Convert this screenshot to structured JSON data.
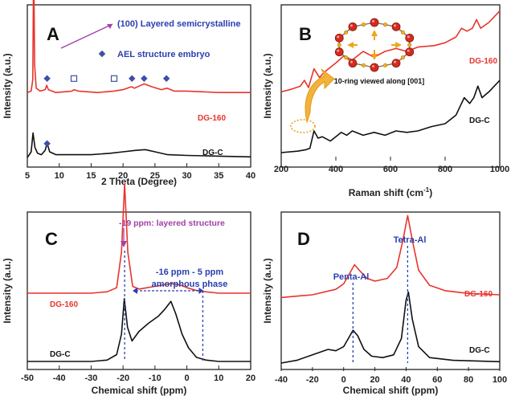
{
  "colors": {
    "red": "#e8342c",
    "black": "#111111",
    "blue": "#2a3fb0",
    "purple": "#a040a8",
    "diamond": "#3d4fa8",
    "ringbead": "#d42b1e",
    "arrow": "#f0a51a"
  },
  "chart_data": [
    {
      "panel": "A",
      "type": "line",
      "xlabel": "2 Theta (Degree)",
      "ylabel": "Intensity (a.u.)",
      "xlim": [
        5,
        40
      ],
      "xticks": [
        "5",
        "10",
        "15",
        "20",
        "25",
        "30",
        "35",
        "40"
      ],
      "legend": {
        "marker1": "(100) Layered semicrystalline",
        "marker2": "AEL structure embryo"
      },
      "series": [
        {
          "name": "DG-160",
          "color": "#e8342c",
          "offset": 0.45,
          "points": [
            [
              5,
              0.01
            ],
            [
              5.6,
              0.02
            ],
            [
              5.85,
              0.1
            ],
            [
              6.0,
              0.95
            ],
            [
              6.15,
              0.2
            ],
            [
              6.4,
              0.04
            ],
            [
              7.0,
              0.02
            ],
            [
              7.8,
              0.03
            ],
            [
              8.05,
              0.06
            ],
            [
              8.3,
              0.03
            ],
            [
              9.5,
              0.01
            ],
            [
              12.0,
              0.02
            ],
            [
              12.3,
              0.03
            ],
            [
              13,
              0.02
            ],
            [
              16,
              0.01
            ],
            [
              18.6,
              0.02
            ],
            [
              20,
              0.03
            ],
            [
              21.3,
              0.05
            ],
            [
              21.8,
              0.04
            ],
            [
              22.8,
              0.06
            ],
            [
              23.3,
              0.07
            ],
            [
              24.5,
              0.05
            ],
            [
              26,
              0.03
            ],
            [
              26.9,
              0.04
            ],
            [
              28,
              0.02
            ],
            [
              30,
              0.02
            ],
            [
              35,
              0.01
            ],
            [
              40,
              0.01
            ]
          ]
        },
        {
          "name": "DG-C",
          "color": "#111111",
          "offset": 0.0,
          "points": [
            [
              5,
              0.01
            ],
            [
              5.6,
              0.05
            ],
            [
              5.9,
              0.18
            ],
            [
              6.2,
              0.08
            ],
            [
              6.6,
              0.04
            ],
            [
              7.2,
              0.03
            ],
            [
              7.8,
              0.06
            ],
            [
              8.1,
              0.11
            ],
            [
              8.5,
              0.05
            ],
            [
              9.5,
              0.03
            ],
            [
              12,
              0.03
            ],
            [
              15,
              0.03
            ],
            [
              18,
              0.04
            ],
            [
              20,
              0.05
            ],
            [
              22,
              0.06
            ],
            [
              23.5,
              0.065
            ],
            [
              25,
              0.05
            ],
            [
              27,
              0.03
            ],
            [
              30,
              0.025
            ],
            [
              35,
              0.02
            ],
            [
              40,
              0.015
            ]
          ]
        }
      ],
      "markers": [
        {
          "type": "filled-diamond",
          "x": [
            8.1,
            21.4,
            23.3,
            26.8
          ],
          "series": "DG-160"
        },
        {
          "type": "open-square",
          "x": [
            12.3,
            18.6
          ],
          "series": "DG-160"
        },
        {
          "type": "filled-diamond",
          "x": [
            8.1
          ],
          "series": "DG-C"
        }
      ]
    },
    {
      "panel": "B",
      "type": "line",
      "xlabel": "Raman shift (cm",
      "xlabel_sup": "-1",
      "xlabel_end": ")",
      "ylabel": "Intensity (a.u.)",
      "xlim": [
        200,
        1000
      ],
      "xticks": [
        "200",
        "400",
        "600",
        "800",
        "1000"
      ],
      "inset_label": "10-ring viewed along [001]",
      "series": [
        {
          "name": "DG-160",
          "color": "#e8342c",
          "offset": 0.42,
          "points": [
            [
              200,
              0.0
            ],
            [
              240,
              0.02
            ],
            [
              270,
              0.04
            ],
            [
              285,
              0.08
            ],
            [
              300,
              0.03
            ],
            [
              320,
              0.16
            ],
            [
              340,
              0.1
            ],
            [
              360,
              0.14
            ],
            [
              400,
              0.2
            ],
            [
              430,
              0.25
            ],
            [
              460,
              0.22
            ],
            [
              500,
              0.28
            ],
            [
              540,
              0.24
            ],
            [
              580,
              0.28
            ],
            [
              620,
              0.3
            ],
            [
              660,
              0.28
            ],
            [
              700,
              0.31
            ],
            [
              760,
              0.32
            ],
            [
              800,
              0.34
            ],
            [
              840,
              0.38
            ],
            [
              860,
              0.44
            ],
            [
              880,
              0.42
            ],
            [
              900,
              0.44
            ],
            [
              915,
              0.5
            ],
            [
              930,
              0.44
            ],
            [
              960,
              0.48
            ],
            [
              1000,
              0.56
            ]
          ]
        },
        {
          "name": "DG-C",
          "color": "#111111",
          "offset": 0.0,
          "points": [
            [
              200,
              0.0
            ],
            [
              260,
              0.01
            ],
            [
              290,
              0.02
            ],
            [
              305,
              0.03
            ],
            [
              320,
              0.15
            ],
            [
              335,
              0.1
            ],
            [
              350,
              0.11
            ],
            [
              380,
              0.08
            ],
            [
              420,
              0.14
            ],
            [
              440,
              0.12
            ],
            [
              460,
              0.15
            ],
            [
              500,
              0.12
            ],
            [
              540,
              0.14
            ],
            [
              580,
              0.12
            ],
            [
              620,
              0.15
            ],
            [
              660,
              0.14
            ],
            [
              700,
              0.15
            ],
            [
              750,
              0.18
            ],
            [
              800,
              0.2
            ],
            [
              840,
              0.26
            ],
            [
              870,
              0.38
            ],
            [
              890,
              0.34
            ],
            [
              905,
              0.38
            ],
            [
              920,
              0.46
            ],
            [
              935,
              0.38
            ],
            [
              960,
              0.42
            ],
            [
              1000,
              0.5
            ]
          ]
        }
      ]
    },
    {
      "panel": "C",
      "type": "line",
      "xlabel": "Chemical shift (ppm)",
      "ylabel": "Intensity (a.u.)",
      "xlim": [
        -50,
        20
      ],
      "xticks": [
        "-50",
        "-40",
        "-30",
        "-20",
        "-10",
        "0",
        "10",
        "20"
      ],
      "annotations": {
        "peak": "-19 ppm:  layered structure",
        "range1": "-16 ppm - 5 ppm",
        "range2": "amorphous phase"
      },
      "series": [
        {
          "name": "DG-160",
          "color": "#e8342c",
          "offset": 0.5,
          "points": [
            [
              -50,
              0.0
            ],
            [
              -30,
              0.0
            ],
            [
              -25,
              0.01
            ],
            [
              -22,
              0.04
            ],
            [
              -20.5,
              0.3
            ],
            [
              -19.5,
              0.8
            ],
            [
              -18.5,
              0.3
            ],
            [
              -17,
              0.05
            ],
            [
              -15,
              0.03
            ],
            [
              -10,
              0.05
            ],
            [
              -5,
              0.07
            ],
            [
              -2,
              0.06
            ],
            [
              0,
              0.04
            ],
            [
              3,
              0.02
            ],
            [
              6,
              0.01
            ],
            [
              10,
              0.0
            ],
            [
              20,
              0.0
            ]
          ]
        },
        {
          "name": "DG-C",
          "color": "#111111",
          "offset": 0.0,
          "points": [
            [
              -50,
              0.0
            ],
            [
              -30,
              0.0
            ],
            [
              -25,
              0.01
            ],
            [
              -22,
              0.05
            ],
            [
              -20.5,
              0.2
            ],
            [
              -19.6,
              0.46
            ],
            [
              -18.6,
              0.25
            ],
            [
              -17.2,
              0.15
            ],
            [
              -15,
              0.22
            ],
            [
              -12,
              0.28
            ],
            [
              -9,
              0.33
            ],
            [
              -7,
              0.38
            ],
            [
              -5,
              0.44
            ],
            [
              -3.5,
              0.35
            ],
            [
              -1.5,
              0.2
            ],
            [
              0.5,
              0.1
            ],
            [
              3,
              0.03
            ],
            [
              6,
              0.01
            ],
            [
              10,
              0.0
            ],
            [
              20,
              0.0
            ]
          ]
        }
      ]
    },
    {
      "panel": "D",
      "type": "line",
      "xlabel": "Chemical shift (ppm)",
      "ylabel": "Intensity (a.u.)",
      "xlim": [
        -40,
        100
      ],
      "xticks": [
        "-40",
        "-20",
        "0",
        "20",
        "40",
        "60",
        "80",
        "100"
      ],
      "annotations": {
        "penta": "Penta-Al",
        "tetra": "Tetra-Al"
      },
      "series": [
        {
          "name": "DG-160",
          "color": "#e8342c",
          "offset": 0.48,
          "points": [
            [
              -40,
              0.0
            ],
            [
              -20,
              0.02
            ],
            [
              -5,
              0.06
            ],
            [
              0,
              0.1
            ],
            [
              5,
              0.2
            ],
            [
              7,
              0.24
            ],
            [
              10,
              0.2
            ],
            [
              15,
              0.14
            ],
            [
              20,
              0.12
            ],
            [
              28,
              0.14
            ],
            [
              34,
              0.22
            ],
            [
              38,
              0.42
            ],
            [
              41,
              0.6
            ],
            [
              44,
              0.42
            ],
            [
              48,
              0.2
            ],
            [
              55,
              0.09
            ],
            [
              65,
              0.05
            ],
            [
              80,
              0.03
            ],
            [
              100,
              0.02
            ]
          ]
        },
        {
          "name": "DG-C",
          "color": "#111111",
          "offset": 0.0,
          "points": [
            [
              -40,
              0.0
            ],
            [
              -30,
              0.02
            ],
            [
              -20,
              0.06
            ],
            [
              -10,
              0.1
            ],
            [
              -5,
              0.09
            ],
            [
              0,
              0.12
            ],
            [
              4,
              0.2
            ],
            [
              6,
              0.24
            ],
            [
              9,
              0.2
            ],
            [
              13,
              0.1
            ],
            [
              18,
              0.05
            ],
            [
              25,
              0.04
            ],
            [
              32,
              0.06
            ],
            [
              37,
              0.18
            ],
            [
              40,
              0.46
            ],
            [
              41.5,
              0.52
            ],
            [
              44,
              0.32
            ],
            [
              48,
              0.12
            ],
            [
              55,
              0.04
            ],
            [
              70,
              0.02
            ],
            [
              100,
              0.01
            ]
          ]
        }
      ]
    }
  ]
}
